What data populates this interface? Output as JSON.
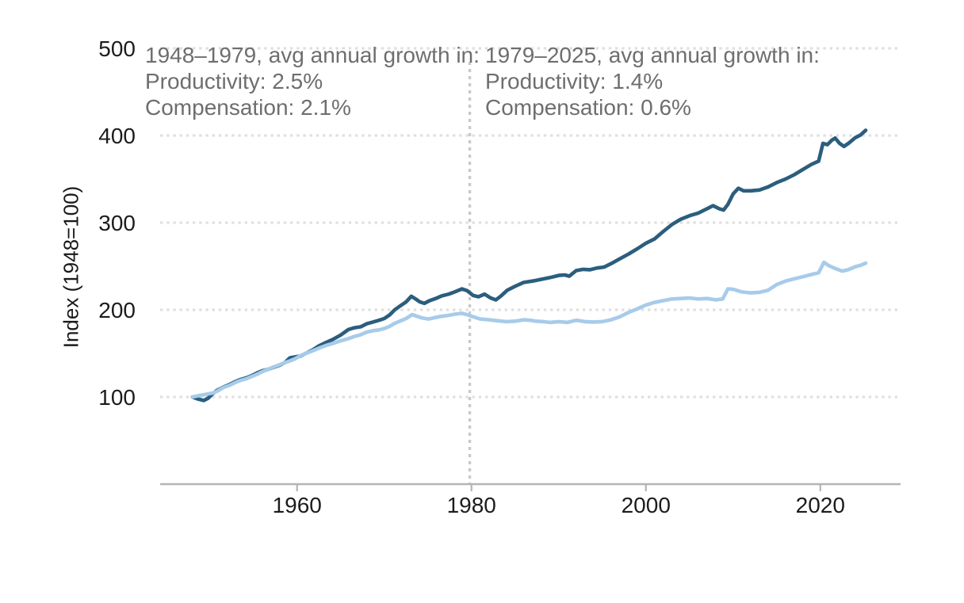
{
  "colors": {
    "productivity_line": "#2b5e7e",
    "compensation_line": "#a7cbea",
    "gridline": "#e0e0e0",
    "divider_line": "#c9c9c9",
    "axis_line": "#b4b4b4",
    "tick_label": "#1c1c1c",
    "annotation_text": "#6e6e6e",
    "background": "#ffffff"
  },
  "annotations": {
    "left": {
      "line1": "1948–1979, avg annual growth in:",
      "line2": "Productivity: 2.5%",
      "line3": "Compensation: 2.1%"
    },
    "right": {
      "line1": "1979–2025, avg annual growth in:",
      "line2": "Productivity: 1.4%",
      "line3": "Compensation: 0.6%"
    }
  },
  "chart_data": {
    "type": "line",
    "title": "",
    "xlabel": "",
    "ylabel": "Index (1948=100)",
    "x_ticks": [
      1960,
      1980,
      2000,
      2020
    ],
    "y_ticks": [
      100,
      200,
      300,
      400,
      500
    ],
    "xlim": [
      1944.3,
      2029.2
    ],
    "ylim": [
      0,
      510
    ],
    "grid": "horizontal dotted gridlines at each y tick; dotted vertical divider at 1979/1980 boundary",
    "legend": "none (series identified in annotations)",
    "divider_year": 1979.8,
    "series": [
      {
        "name": "Productivity",
        "color": "#2b5e7e",
        "points": [
          [
            1948,
            100
          ],
          [
            1948.7,
            97.5
          ],
          [
            1949.3,
            96
          ],
          [
            1949.8,
            98.5
          ],
          [
            1950.3,
            103.5
          ],
          [
            1950.8,
            107.5
          ],
          [
            1951.5,
            111
          ],
          [
            1952.3,
            114.5
          ],
          [
            1953,
            118
          ],
          [
            1953.5,
            120
          ],
          [
            1954.2,
            122
          ],
          [
            1954.8,
            124.5
          ],
          [
            1955.4,
            127.5
          ],
          [
            1956,
            130
          ],
          [
            1956.6,
            131.5
          ],
          [
            1957.3,
            134
          ],
          [
            1958,
            136.5
          ],
          [
            1958.6,
            139.5
          ],
          [
            1959.2,
            145
          ],
          [
            1959.8,
            146
          ],
          [
            1960.4,
            147
          ],
          [
            1961,
            150
          ],
          [
            1961.8,
            154
          ],
          [
            1962.5,
            158.5
          ],
          [
            1963.3,
            162.5
          ],
          [
            1964.1,
            166
          ],
          [
            1965,
            171
          ],
          [
            1965.9,
            177.5
          ],
          [
            1966.6,
            179.5
          ],
          [
            1967.3,
            180.5
          ],
          [
            1968,
            184
          ],
          [
            1968.7,
            186
          ],
          [
            1969.4,
            188
          ],
          [
            1970,
            190
          ],
          [
            1970.6,
            194
          ],
          [
            1971.2,
            200
          ],
          [
            1971.9,
            205
          ],
          [
            1972.5,
            209
          ],
          [
            1973.1,
            215.5
          ],
          [
            1973.6,
            212.5
          ],
          [
            1974.1,
            209
          ],
          [
            1974.6,
            207.5
          ],
          [
            1975.2,
            210.5
          ],
          [
            1975.9,
            213
          ],
          [
            1976.6,
            216
          ],
          [
            1977.4,
            218
          ],
          [
            1978.2,
            221
          ],
          [
            1978.9,
            224
          ],
          [
            1979.5,
            222
          ],
          [
            1980.2,
            216.5
          ],
          [
            1980.8,
            215
          ],
          [
            1981.5,
            218
          ],
          [
            1982.2,
            213.5
          ],
          [
            1982.8,
            211.5
          ],
          [
            1983.4,
            216
          ],
          [
            1984.1,
            222.5
          ],
          [
            1985,
            227
          ],
          [
            1986,
            231.5
          ],
          [
            1987,
            233
          ],
          [
            1988,
            235
          ],
          [
            1989,
            237
          ],
          [
            1990,
            239.5
          ],
          [
            1990.7,
            240
          ],
          [
            1991.2,
            238.5
          ],
          [
            1992,
            245
          ],
          [
            1992.8,
            246.5
          ],
          [
            1993.6,
            246
          ],
          [
            1994.4,
            248
          ],
          [
            1995.2,
            249
          ],
          [
            1996,
            253
          ],
          [
            1997,
            258.5
          ],
          [
            1998,
            264
          ],
          [
            1999,
            270
          ],
          [
            2000,
            276.5
          ],
          [
            2001,
            281.5
          ],
          [
            2002,
            290
          ],
          [
            2003,
            298
          ],
          [
            2004,
            304
          ],
          [
            2005,
            308
          ],
          [
            2006,
            311
          ],
          [
            2007,
            316
          ],
          [
            2007.7,
            319.5
          ],
          [
            2008.4,
            316
          ],
          [
            2008.9,
            314.5
          ],
          [
            2009.4,
            321
          ],
          [
            2010,
            333
          ],
          [
            2010.6,
            339.5
          ],
          [
            2011.2,
            336.5
          ],
          [
            2012,
            336.5
          ],
          [
            2013,
            337.5
          ],
          [
            2014,
            341
          ],
          [
            2015,
            346
          ],
          [
            2016,
            350
          ],
          [
            2017,
            355
          ],
          [
            2018,
            361
          ],
          [
            2019,
            367
          ],
          [
            2019.8,
            370.5
          ],
          [
            2020.3,
            391
          ],
          [
            2020.8,
            389.5
          ],
          [
            2021.3,
            394.5
          ],
          [
            2021.7,
            397
          ],
          [
            2022.2,
            391
          ],
          [
            2022.7,
            387.5
          ],
          [
            2023.3,
            391.5
          ],
          [
            2024,
            397.5
          ],
          [
            2024.6,
            400.5
          ],
          [
            2025.2,
            406
          ]
        ]
      },
      {
        "name": "Compensation",
        "color": "#a7cbea",
        "points": [
          [
            1948,
            100
          ],
          [
            1948.7,
            101.5
          ],
          [
            1949.3,
            102.5
          ],
          [
            1949.8,
            103.5
          ],
          [
            1950.3,
            104.5
          ],
          [
            1950.8,
            106.5
          ],
          [
            1951.5,
            110.5
          ],
          [
            1952.3,
            113.5
          ],
          [
            1953,
            117
          ],
          [
            1953.5,
            119
          ],
          [
            1954.2,
            121
          ],
          [
            1954.8,
            123.5
          ],
          [
            1955.4,
            126
          ],
          [
            1956,
            129
          ],
          [
            1956.6,
            131.5
          ],
          [
            1957.3,
            134.5
          ],
          [
            1958,
            137
          ],
          [
            1958.6,
            139.5
          ],
          [
            1959.2,
            141.5
          ],
          [
            1959.8,
            144
          ],
          [
            1960.4,
            147.5
          ],
          [
            1961,
            150
          ],
          [
            1961.8,
            153
          ],
          [
            1962.5,
            156
          ],
          [
            1963.3,
            159
          ],
          [
            1964.1,
            161.5
          ],
          [
            1965,
            164.5
          ],
          [
            1965.9,
            167
          ],
          [
            1966.6,
            169.5
          ],
          [
            1967.3,
            171.5
          ],
          [
            1968,
            174.5
          ],
          [
            1968.7,
            176
          ],
          [
            1969.4,
            177
          ],
          [
            1970,
            178.5
          ],
          [
            1970.6,
            181
          ],
          [
            1971.2,
            184.5
          ],
          [
            1971.9,
            187.5
          ],
          [
            1972.5,
            190
          ],
          [
            1973.2,
            194.5
          ],
          [
            1973.8,
            192.5
          ],
          [
            1974.4,
            190.5
          ],
          [
            1975.1,
            189.5
          ],
          [
            1975.8,
            191
          ],
          [
            1976.5,
            192.5
          ],
          [
            1977.3,
            193.5
          ],
          [
            1978.1,
            195
          ],
          [
            1978.9,
            196
          ],
          [
            1979.5,
            194.5
          ],
          [
            1980.2,
            192
          ],
          [
            1981,
            189.5
          ],
          [
            1982,
            188.5
          ],
          [
            1983,
            187.5
          ],
          [
            1984,
            186.5
          ],
          [
            1985,
            187
          ],
          [
            1986,
            188.5
          ],
          [
            1986.7,
            188
          ],
          [
            1987.4,
            187
          ],
          [
            1988.2,
            186.5
          ],
          [
            1989,
            185.5
          ],
          [
            1990,
            186.5
          ],
          [
            1991,
            185.5
          ],
          [
            1992,
            188
          ],
          [
            1993,
            186.5
          ],
          [
            1994,
            186
          ],
          [
            1995,
            186.5
          ],
          [
            1996,
            188.5
          ],
          [
            1997,
            192
          ],
          [
            1998,
            197
          ],
          [
            1999,
            201
          ],
          [
            2000,
            205.5
          ],
          [
            2001,
            208.5
          ],
          [
            2002,
            210.5
          ],
          [
            2003,
            212.5
          ],
          [
            2004,
            213
          ],
          [
            2005,
            213.5
          ],
          [
            2006,
            212.5
          ],
          [
            2007,
            213
          ],
          [
            2008,
            211.5
          ],
          [
            2008.8,
            212.5
          ],
          [
            2009.4,
            224
          ],
          [
            2010,
            223.5
          ],
          [
            2011,
            220.5
          ],
          [
            2012,
            219.5
          ],
          [
            2013,
            220
          ],
          [
            2014,
            222.5
          ],
          [
            2015,
            229
          ],
          [
            2016,
            233
          ],
          [
            2017,
            235.5
          ],
          [
            2018,
            238
          ],
          [
            2019,
            240.5
          ],
          [
            2019.8,
            242.5
          ],
          [
            2020.4,
            254.5
          ],
          [
            2021,
            250.5
          ],
          [
            2021.7,
            247.5
          ],
          [
            2022.5,
            244.5
          ],
          [
            2023.2,
            246
          ],
          [
            2024,
            249.5
          ],
          [
            2024.6,
            251
          ],
          [
            2025.2,
            253.5
          ]
        ]
      }
    ]
  }
}
